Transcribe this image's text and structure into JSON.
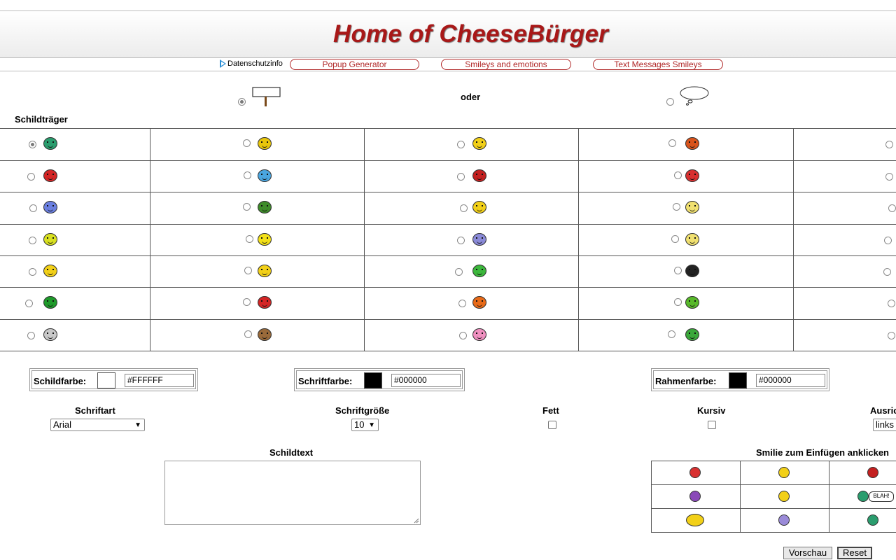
{
  "header": {
    "title": "Home of CheeseBürger"
  },
  "nav": {
    "privacy": "Datenschutzinfo",
    "links": [
      "Popup Generator",
      "Smileys and emotions",
      "Text Messages Smileys"
    ]
  },
  "type_select": {
    "or_label": "oder",
    "section_label": "Schildträger"
  },
  "grid": {
    "rows": [
      [
        "green-grin-smiley",
        "yellow-laugh-smiley",
        "thumbs-up-smiley",
        "bone-smiley"
      ],
      [
        "santa-hat-smiley",
        "music-note-smiley",
        "devil-smiley",
        "angry-red-smiley"
      ],
      [
        "crying-blue-smiley",
        "green-frog-smiley",
        "cool-yellow-smiley",
        "chef-smiley"
      ],
      [
        "angel-halo-smiley",
        "small-yellow-smiley",
        "purple-smiley",
        "wizard-smiley"
      ],
      [
        "happy-yellow-smiley",
        "cigar-smiley",
        "green-monster-smiley",
        "black-grin-smiley"
      ],
      [
        "dog-bone-smiley",
        "red-creature-smiley",
        "red-hair-smiley",
        "green-alien-smiley"
      ],
      [
        "mouse-smiley",
        "goat-smiley",
        "pig-smiley",
        "green-dragon-smiley"
      ]
    ],
    "colors": [
      [
        "#2a9d6e",
        "#e8c60a",
        "#f2d018",
        "#d9541c"
      ],
      [
        "#d42525",
        "#4aa6e0",
        "#c42020",
        "#d83030"
      ],
      [
        "#6a7fe0",
        "#3e8c2a",
        "#f2d018",
        "#f0e070"
      ],
      [
        "#d8e020",
        "#f2e018",
        "#8a8ad8",
        "#f0e070"
      ],
      [
        "#f2d018",
        "#f2d018",
        "#3cb83c",
        "#222222"
      ],
      [
        "#1e9a2a",
        "#d42525",
        "#e86a18",
        "#58b82a"
      ],
      [
        "#c8c8c8",
        "#9a6a3a",
        "#f090c0",
        "#3aa83a"
      ]
    ]
  },
  "colors": {
    "shield": {
      "label": "Schildfarbe:",
      "value": "#FFFFFF",
      "swatch": "#FFFFFF"
    },
    "font": {
      "label": "Schriftfarbe:",
      "value": "#000000",
      "swatch": "#000000"
    },
    "border": {
      "label": "Rahmenfarbe:",
      "value": "#000000",
      "swatch": "#000000"
    }
  },
  "font_options": {
    "font_label": "Schriftart",
    "font_value": "Arial",
    "size_label": "Schriftgröße",
    "size_value": "10",
    "bold_label": "Fett",
    "italic_label": "Kursiv",
    "align_label": "Ausric",
    "align_value": "links"
  },
  "text": {
    "label": "Schildtext"
  },
  "smilies": {
    "label": "Smilie zum Einfügen anklicken",
    "items": [
      "angry-red-smiley",
      "cheering-arms-smiley",
      "red-ball-smiley",
      "purple-eye-smiley",
      "yellow-smiley",
      "blah-sign-smiley",
      "big-yellow-smiley",
      "purple-grin-smiley",
      "teal-shout-smiley"
    ],
    "colors": [
      "#d83030",
      "#f2d018",
      "#c42020",
      "#8a4ab8",
      "#f2d018",
      "#2a9d6e",
      "#f2d018",
      "#9a8ad8",
      "#2a9d6e"
    ],
    "blah_text": "BLAH!"
  },
  "buttons": {
    "preview": "Vorschau",
    "reset": "Reset"
  },
  "accent": "#a81818"
}
